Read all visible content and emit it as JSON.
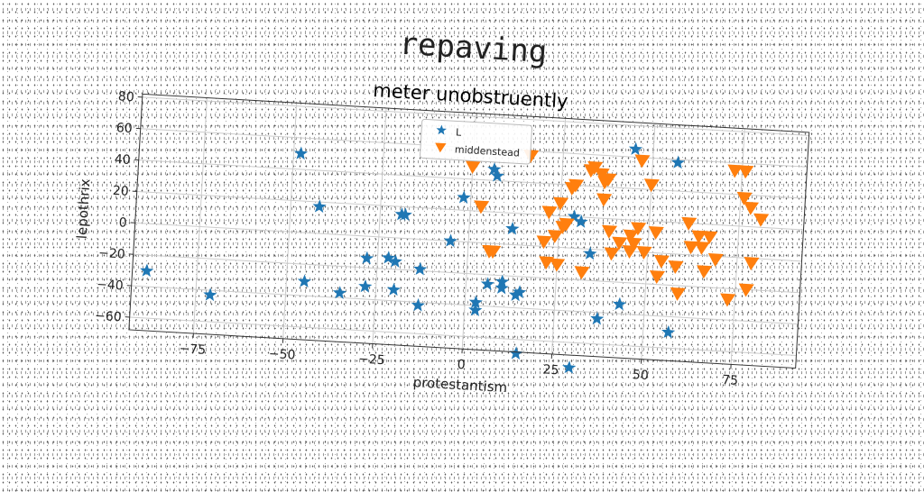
{
  "figure": {
    "suptitle": "repaving"
  },
  "chart_data": {
    "type": "scatter",
    "title": "meter unobstruently",
    "xlabel": "protestantism",
    "ylabel": "lepothrix",
    "xlim": [
      -93,
      93
    ],
    "ylim": [
      -68,
      82
    ],
    "xticks": [
      -75,
      -50,
      -25,
      0,
      25,
      50,
      75
    ],
    "yticks": [
      -60,
      -40,
      -20,
      0,
      20,
      40,
      60,
      80
    ],
    "grid": true,
    "legend_position": "top-center",
    "series": [
      {
        "name": "L",
        "marker": "star",
        "color": "#1f77b4",
        "points": [
          [
            -89,
            -30
          ],
          [
            -71,
            -43
          ],
          [
            -48,
            50
          ],
          [
            -45,
            -31
          ],
          [
            -42,
            17
          ],
          [
            -35,
            -37
          ],
          [
            -28,
            -14
          ],
          [
            -28,
            -32
          ],
          [
            -22,
            -13
          ],
          [
            -20,
            -15
          ],
          [
            -20,
            -33
          ],
          [
            -19,
            15
          ],
          [
            -18,
            15
          ],
          [
            -13,
            -19
          ],
          [
            -13,
            -42
          ],
          [
            -5,
            0
          ],
          [
            -2,
            28
          ],
          [
            3,
            -38
          ],
          [
            3,
            -43
          ],
          [
            6,
            -26
          ],
          [
            6,
            47
          ],
          [
            7,
            43
          ],
          [
            10,
            -24
          ],
          [
            10,
            -28
          ],
          [
            12,
            10
          ],
          [
            14,
            -32
          ],
          [
            15,
            -30
          ],
          [
            15,
            -69
          ],
          [
            30,
            -76
          ],
          [
            29,
            20
          ],
          [
            31,
            17
          ],
          [
            34,
            -3
          ],
          [
            37,
            -44
          ],
          [
            43,
            -34
          ],
          [
            45,
            65
          ],
          [
            57,
            58
          ],
          [
            57,
            -50
          ]
        ]
      },
      {
        "name": "middenstead",
        "marker": "triangle_down",
        "color": "#ff7f0e",
        "points": [
          [
            0,
            48
          ],
          [
            3,
            23
          ],
          [
            6,
            -5
          ],
          [
            7,
            -5
          ],
          [
            16,
            57
          ],
          [
            21,
            3
          ],
          [
            22,
            -10
          ],
          [
            22,
            22
          ],
          [
            24,
            7
          ],
          [
            25,
            -11
          ],
          [
            25,
            28
          ],
          [
            26,
            13
          ],
          [
            27,
            15
          ],
          [
            28,
            38
          ],
          [
            29,
            40
          ],
          [
            32,
            -15
          ],
          [
            33,
            50
          ],
          [
            34,
            52
          ],
          [
            36,
            48
          ],
          [
            37,
            43
          ],
          [
            37,
            32
          ],
          [
            38,
            45
          ],
          [
            39,
            12
          ],
          [
            40,
            -2
          ],
          [
            42,
            5
          ],
          [
            45,
            10
          ],
          [
            45,
            0
          ],
          [
            46,
            5
          ],
          [
            47,
            58
          ],
          [
            47,
            15
          ],
          [
            49,
            0
          ],
          [
            50,
            43
          ],
          [
            52,
            13
          ],
          [
            53,
            -15
          ],
          [
            54,
            -5
          ],
          [
            58,
            -8
          ],
          [
            59,
            -25
          ],
          [
            61,
            20
          ],
          [
            62,
            5
          ],
          [
            64,
            12
          ],
          [
            65,
            5
          ],
          [
            66,
            -10
          ],
          [
            67,
            12
          ],
          [
            69,
            -2
          ],
          [
            73,
            55
          ],
          [
            73,
            -27
          ],
          [
            76,
            55
          ],
          [
            76,
            38
          ],
          [
            78,
            32
          ],
          [
            78,
            -20
          ],
          [
            79,
            -3
          ],
          [
            81,
            25
          ]
        ]
      }
    ]
  }
}
